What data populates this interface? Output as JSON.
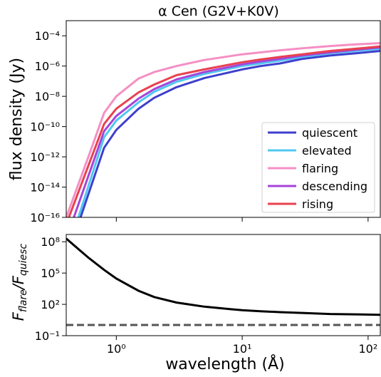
{
  "chart_data": [
    {
      "type": "line",
      "title": "α Cen (G2V+K0V)",
      "xlabel": "wavelength (Å)",
      "ylabel": "flux density (Jy)",
      "xscale": "log",
      "yscale": "log",
      "xlim": [
        0.4,
        125
      ],
      "ylim": [
        1e-16,
        0.001
      ],
      "y_tick_labels": [
        "10⁻¹⁶",
        "10⁻¹⁴",
        "10⁻¹²",
        "10⁻¹⁰",
        "10⁻⁸",
        "10⁻⁶",
        "10⁻⁴"
      ],
      "y_tick_values": [
        1e-16,
        1e-14,
        1e-12,
        1e-10,
        1e-08,
        1e-06,
        0.0001
      ],
      "grid": false,
      "legend_position": "lower-right",
      "series": [
        {
          "name": "quiescent",
          "color": "#3d3fcc",
          "x": [
            0.52,
            0.8,
            1,
            1.5,
            2,
            3,
            5,
            10,
            14,
            20,
            30,
            50,
            80,
            125
          ],
          "y": [
            1e-16,
            4e-12,
            6e-11,
            1.5e-09,
            8e-09,
            4e-08,
            1.6e-07,
            6e-07,
            1e-06,
            1.5e-06,
            3e-06,
            5e-06,
            7e-06,
            1e-05
          ]
        },
        {
          "name": "elevated",
          "color": "#4fc8f0",
          "x": [
            0.5,
            0.8,
            1,
            1.5,
            2,
            3,
            5,
            10,
            14,
            20,
            30,
            50,
            80,
            125
          ],
          "y": [
            1e-16,
            2e-11,
            2.5e-10,
            4e-09,
            2e-08,
            9e-08,
            3e-07,
            1e-06,
            1.5e-06,
            2.3e-06,
            4e-06,
            7e-06,
            1e-05,
            1.4e-05
          ]
        },
        {
          "name": "flaring",
          "color": "#f58fc4",
          "x": [
            0.4,
            0.6,
            0.8,
            1,
            1.5,
            2,
            3,
            5,
            10,
            14,
            20,
            30,
            50,
            80,
            125
          ],
          "y": [
            1e-16,
            1e-12,
            8e-10,
            1e-08,
            1.5e-07,
            4e-07,
            1e-06,
            2.5e-06,
            6e-06,
            8e-06,
            1.1e-05,
            1.5e-05,
            2.1e-05,
            2.7e-05,
            3.3e-05
          ]
        },
        {
          "name": "descending",
          "color": "#a644d8",
          "x": [
            0.46,
            0.8,
            1,
            1.5,
            2,
            3,
            5,
            10,
            14,
            20,
            30,
            50,
            80,
            125
          ],
          "y": [
            1e-16,
            5e-11,
            5e-10,
            7e-09,
            3e-08,
            1.3e-07,
            4e-07,
            1.3e-06,
            2e-06,
            3e-06,
            5e-06,
            8e-06,
            1.2e-05,
            1.7e-05
          ]
        },
        {
          "name": "rising",
          "color": "#e8414f",
          "x": [
            0.42,
            0.8,
            1,
            1.5,
            2,
            3,
            5,
            10,
            14,
            20,
            30,
            50,
            80,
            125
          ],
          "y": [
            1e-16,
            1.5e-10,
            1.5e-09,
            1.8e-08,
            6e-08,
            2.5e-07,
            6e-07,
            1.8e-06,
            2.7e-06,
            4e-06,
            6e-06,
            1e-05,
            1.4e-05,
            2e-05
          ]
        }
      ]
    },
    {
      "type": "line",
      "xlabel": "wavelength (Å)",
      "ylabel": "F_flare/F_quiesc",
      "xscale": "log",
      "yscale": "log",
      "xlim": [
        0.4,
        125
      ],
      "ylim": [
        0.1,
        500000000.0
      ],
      "x_tick_labels": [
        "10⁰",
        "10¹",
        "10²"
      ],
      "x_tick_values": [
        1,
        10,
        100
      ],
      "y_tick_labels": [
        "10⁻¹",
        "10²",
        "10⁵",
        "10⁸"
      ],
      "y_tick_values": [
        0.1,
        100,
        100000,
        100000000
      ],
      "grid": false,
      "series": [
        {
          "color": "#000000",
          "style": "solid",
          "x": [
            0.4,
            0.5,
            0.6,
            0.8,
            1,
            1.5,
            2,
            3,
            5,
            8,
            10,
            14,
            20,
            30,
            50,
            80,
            125
          ],
          "y": [
            200000000,
            20000000,
            3000000,
            200000,
            30000,
            2000,
            500,
            150,
            60,
            35,
            28,
            22,
            18,
            15,
            12,
            11,
            10
          ]
        },
        {
          "color": "#555555",
          "style": "dashed",
          "x": [
            0.4,
            125
          ],
          "y": [
            1.05,
            1.05
          ]
        }
      ]
    }
  ]
}
